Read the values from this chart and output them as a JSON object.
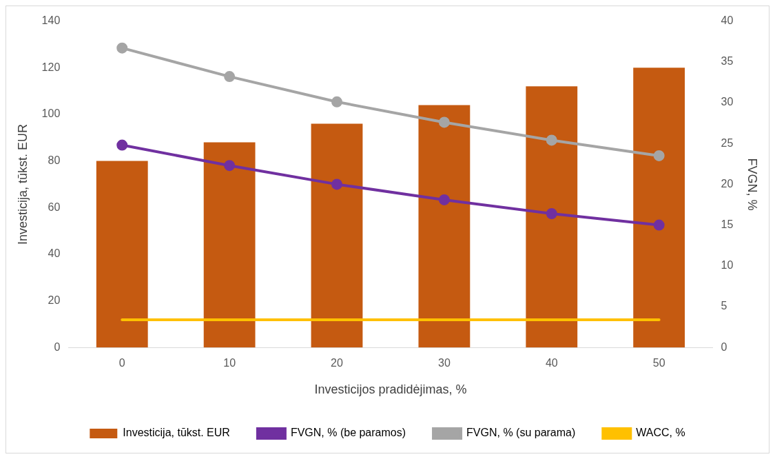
{
  "chart_data": {
    "type": "bar",
    "categories": [
      "0",
      "10",
      "20",
      "30",
      "40",
      "50"
    ],
    "xlabel": "Investicijos pradidėjimas, %",
    "ylabel": "Investicija, tūkst. EUR",
    "y2label": "FVGN, %",
    "ylim": [
      0,
      140
    ],
    "yticks": [
      0,
      20,
      40,
      60,
      80,
      100,
      120,
      140
    ],
    "y2lim": [
      0,
      40
    ],
    "y2ticks": [
      0,
      5,
      10,
      15,
      20,
      25,
      30,
      35,
      40
    ],
    "grid": false,
    "legend": "bottom",
    "series": [
      {
        "name": "Investicija, tūkst. EUR",
        "color": "#c55a11",
        "values": [
          80,
          88,
          96,
          104,
          112,
          120
        ]
      },
      {
        "name": "FVGN, % (be paramos)",
        "type": "line",
        "axis": "y2",
        "marker": "circle",
        "color": "#7030a0",
        "values": [
          24.8,
          22.3,
          20.0,
          18.1,
          16.4,
          15.0
        ]
      },
      {
        "name": "FVGN, % (su parama)",
        "type": "line",
        "axis": "y2",
        "marker": "circle",
        "color": "#a5a5a5",
        "values": [
          36.7,
          33.2,
          30.1,
          27.6,
          25.4,
          23.5
        ]
      },
      {
        "name": "WACC, %",
        "type": "line",
        "axis": "y2",
        "marker": "none",
        "color": "#ffc000",
        "values": [
          3.4,
          3.4,
          3.4,
          3.4,
          3.4,
          3.4
        ]
      }
    ]
  }
}
